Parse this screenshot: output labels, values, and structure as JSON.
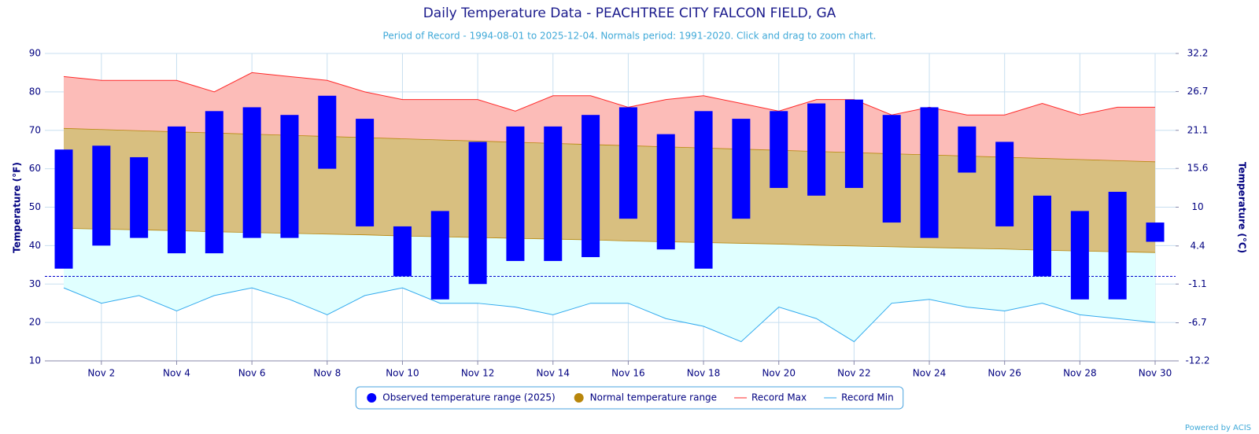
{
  "chart_data": {
    "type": "range",
    "title": "Daily Temperature Data - PEACHTREE CITY FALCON FIELD, GA",
    "subtitle": "Period of Record - 1994-08-01 to 2025-12-04. Normals period: 1991-2020. Click and drag to zoom chart.",
    "credit": "Powered by ACIS",
    "y_label": "Temperature (°F)",
    "y2_label": "Temperature (°C)",
    "categories": [
      null,
      "Nov 2",
      null,
      "Nov 4",
      null,
      "Nov 6",
      null,
      "Nov 8",
      null,
      "Nov 10",
      null,
      "Nov 12",
      null,
      "Nov 14",
      null,
      "Nov 16",
      null,
      "Nov 18",
      null,
      "Nov 20",
      null,
      "Nov 22",
      null,
      "Nov 24",
      null,
      "Nov 26",
      null,
      "Nov 28",
      null,
      "Nov 30"
    ],
    "ylim": [
      10,
      90
    ],
    "yticks": [
      10,
      20,
      30,
      40,
      50,
      60,
      70,
      80,
      90
    ],
    "y2lim": [
      -12.2,
      32.2
    ],
    "y2ticks": [
      -12.2,
      -6.7,
      -1.1,
      4.4,
      10,
      15.6,
      21.1,
      26.7,
      32.2
    ],
    "threshold": 32,
    "grid": true,
    "legend": "bottom",
    "series": [
      {
        "name": "Observed temperature range (2025)",
        "color": "#0000ff",
        "low": [
          34,
          40,
          42,
          38,
          38,
          42,
          42,
          60,
          45,
          32,
          26,
          30,
          36,
          36,
          37,
          47,
          39,
          34,
          47,
          55,
          53,
          55,
          46,
          42,
          59,
          45,
          32,
          26,
          26,
          41
        ],
        "high": [
          65,
          66,
          63,
          71,
          75,
          76,
          74,
          79,
          73,
          45,
          49,
          67,
          71,
          71,
          74,
          76,
          69,
          75,
          73,
          75,
          77,
          78,
          74,
          76,
          71,
          67,
          53,
          49,
          54,
          46
        ]
      },
      {
        "name": "Normal temperature range",
        "color": "#b8860b",
        "fill": "#d8bf80",
        "low": [
          44.5,
          44.3,
          44.1,
          43.9,
          43.6,
          43.4,
          43.2,
          43.0,
          42.8,
          42.5,
          42.3,
          42.1,
          41.9,
          41.7,
          41.5,
          41.2,
          41.0,
          40.8,
          40.6,
          40.4,
          40.1,
          39.9,
          39.7,
          39.5,
          39.3,
          39.1,
          38.8,
          38.6,
          38.4,
          38.2
        ],
        "high": [
          70.5,
          70.2,
          69.9,
          69.6,
          69.3,
          69.0,
          68.7,
          68.4,
          68.1,
          67.8,
          67.5,
          67.2,
          66.9,
          66.6,
          66.3,
          66.0,
          65.7,
          65.4,
          65.1,
          64.8,
          64.5,
          64.2,
          63.9,
          63.6,
          63.3,
          63.0,
          62.7,
          62.4,
          62.1,
          61.8
        ]
      },
      {
        "name": "Record Max",
        "color": "#ff2a2a",
        "fill": "#fcbcb8",
        "values": [
          84,
          83,
          83,
          83,
          80,
          85,
          84,
          83,
          80,
          78,
          78,
          78,
          75,
          79,
          79,
          76,
          78,
          79,
          77,
          75,
          78,
          78,
          74,
          76,
          74,
          74,
          77,
          74,
          76,
          76
        ]
      },
      {
        "name": "Record Min",
        "color": "#33aaee",
        "fill": "#e0ffff",
        "values": [
          29,
          25,
          27,
          23,
          27,
          29,
          26,
          22,
          27,
          29,
          25,
          25,
          24,
          22,
          25,
          25,
          21,
          19,
          15,
          24,
          21,
          15,
          25,
          26,
          24,
          23,
          25,
          22,
          21,
          20
        ]
      }
    ]
  }
}
